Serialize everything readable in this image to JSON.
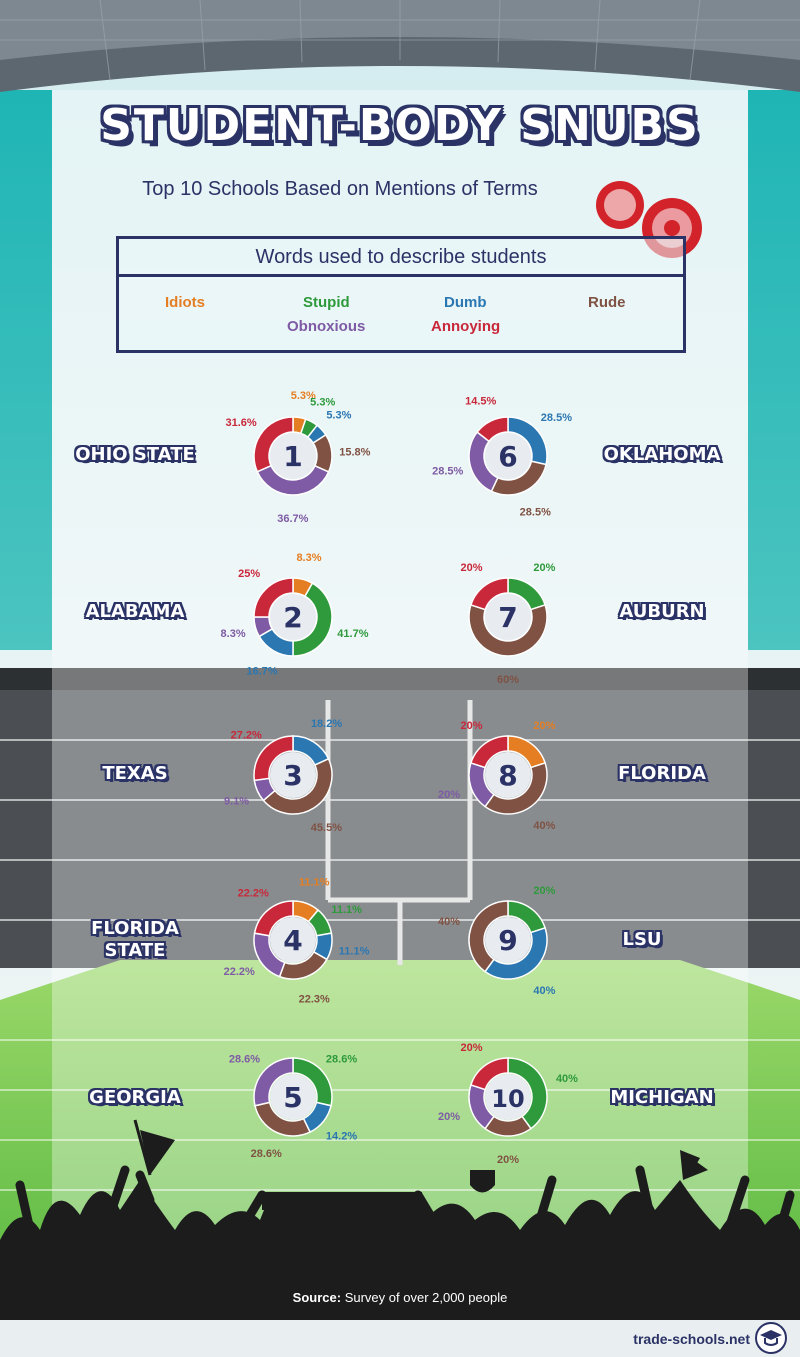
{
  "header": {
    "title": "STUDENT-BODY SNUBS",
    "subtitle": "Top 10 Schools Based on Mentions of Terms"
  },
  "legend": {
    "title": "Words used to describe students",
    "items": [
      {
        "label": "Idiots",
        "color": "#e57e22"
      },
      {
        "label": "Stupid",
        "color": "#2e9a3b"
      },
      {
        "label": "Dumb",
        "color": "#2a77b2"
      },
      {
        "label": "Rude",
        "color": "#7f5243"
      },
      {
        "label": "Obnoxious",
        "color": "#7e5ba4"
      },
      {
        "label": "Annoying",
        "color": "#c9283a"
      }
    ]
  },
  "chart_data": {
    "type": "pie",
    "categories": [
      "Idiots",
      "Stupid",
      "Dumb",
      "Rude",
      "Obnoxious",
      "Annoying"
    ],
    "schools": [
      {
        "rank": "1",
        "name": "OHIO STATE",
        "values": [
          5.3,
          5.3,
          5.3,
          15.8,
          36.7,
          31.6
        ],
        "labels": [
          "5.3%",
          "5.3%",
          "5.3%",
          "15.8%",
          "36.7%",
          "31.6%"
        ]
      },
      {
        "rank": "2",
        "name": "ALABAMA",
        "values": [
          8.3,
          41.7,
          16.7,
          0,
          8.3,
          25
        ],
        "labels": [
          "8.3%",
          "41.7%",
          "16.7%",
          "",
          "8.3%",
          "25%"
        ]
      },
      {
        "rank": "3",
        "name": "TEXAS",
        "values": [
          0,
          0,
          18.2,
          45.5,
          9.1,
          27.2
        ],
        "labels": [
          "",
          "",
          "18.2%",
          "45.5%",
          "9.1%",
          "27.2%"
        ]
      },
      {
        "rank": "4",
        "name": "FLORIDA\nSTATE",
        "values": [
          11.1,
          11.1,
          11.1,
          22.3,
          22.2,
          22.2
        ],
        "labels": [
          "11.1%",
          "11.1%",
          "11.1%",
          "22.3%",
          "22.2%",
          "22.2%"
        ]
      },
      {
        "rank": "5",
        "name": "GEORGIA",
        "values": [
          0,
          28.6,
          14.2,
          28.6,
          28.6,
          0
        ],
        "labels": [
          "",
          "28.6%",
          "14.2%",
          "28.6%",
          "28.6%",
          ""
        ]
      },
      {
        "rank": "6",
        "name": "OKLAHOMA",
        "values": [
          0,
          0,
          28.5,
          28.5,
          28.5,
          14.5
        ],
        "labels": [
          "",
          "",
          "28.5%",
          "28.5%",
          "28.5%",
          "14.5%"
        ]
      },
      {
        "rank": "7",
        "name": "AUBURN",
        "values": [
          0,
          20,
          0,
          60,
          0,
          20
        ],
        "labels": [
          "",
          "20%",
          "",
          "60%",
          "",
          "20%"
        ]
      },
      {
        "rank": "8",
        "name": "FLORIDA",
        "values": [
          20,
          0,
          0,
          40,
          20,
          20
        ],
        "labels": [
          "20%",
          "",
          "",
          "40%",
          "20%",
          "20%"
        ]
      },
      {
        "rank": "9",
        "name": "LSU",
        "values": [
          0,
          20,
          40,
          40,
          0,
          0
        ],
        "labels": [
          "",
          "20%",
          "40%",
          "40%",
          "",
          ""
        ]
      },
      {
        "rank": "10",
        "name": "MICHIGAN",
        "values": [
          0,
          40,
          0,
          20,
          20,
          20
        ],
        "labels": [
          "",
          "40%",
          "",
          "20%",
          "20%",
          "20%"
        ]
      }
    ]
  },
  "footer": {
    "source_label": "Source:",
    "source_text": "Survey of over 2,000 people",
    "brand": "trade-schools.net"
  }
}
